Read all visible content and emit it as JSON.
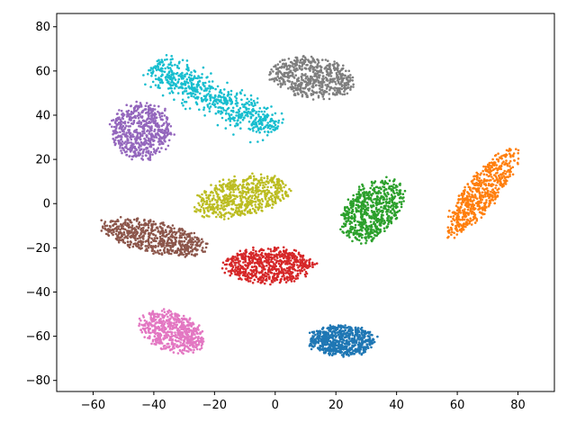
{
  "chart_data": {
    "type": "scatter",
    "title": "",
    "xlabel": "",
    "ylabel": "",
    "xlim": [
      -72,
      92
    ],
    "ylim": [
      -85,
      86
    ],
    "x_ticks": [
      -60,
      -40,
      -20,
      0,
      20,
      40,
      60,
      80
    ],
    "y_ticks": [
      -80,
      -60,
      -40,
      -20,
      0,
      20,
      40,
      60,
      80
    ],
    "x_tick_labels": [
      "−60",
      "−40",
      "−20",
      "0",
      "20",
      "40",
      "60",
      "80"
    ],
    "y_tick_labels": [
      "−80",
      "−60",
      "−40",
      "−20",
      "0",
      "20",
      "40",
      "60",
      "80"
    ],
    "grid": false,
    "legend": "none",
    "series": [
      {
        "color": "#1f77b4",
        "center": [
          22,
          -62
        ],
        "spread": [
          11,
          7
        ],
        "rotation_deg": 0,
        "count": 650,
        "shape": "blob"
      },
      {
        "color": "#ff7f0e",
        "center": [
          68,
          5
        ],
        "spread": [
          6,
          22
        ],
        "rotation_deg": -28,
        "count": 600,
        "shape": "blob"
      },
      {
        "color": "#2ca02c",
        "center": [
          32,
          -3
        ],
        "spread": [
          9,
          15
        ],
        "rotation_deg": -25,
        "count": 650,
        "shape": "blob"
      },
      {
        "color": "#d62728",
        "center": [
          -2,
          -28
        ],
        "spread": [
          15,
          8
        ],
        "rotation_deg": 0,
        "count": 650,
        "shape": "blob"
      },
      {
        "color": "#9467bd",
        "center": [
          -44,
          33
        ],
        "spread": [
          10,
          13
        ],
        "rotation_deg": 0,
        "count": 600,
        "shape": "blob"
      },
      {
        "color": "#8c564b",
        "center": [
          -40,
          -15
        ],
        "spread": [
          18,
          7
        ],
        "rotation_deg": -18,
        "count": 600,
        "shape": "blob"
      },
      {
        "color": "#e377c2",
        "center": [
          -34,
          -58
        ],
        "spread": [
          12,
          8
        ],
        "rotation_deg": -40,
        "count": 600,
        "shape": "blob"
      },
      {
        "color": "#7f7f7f",
        "center": [
          12,
          57
        ],
        "spread": [
          14,
          9
        ],
        "rotation_deg": -15,
        "count": 600,
        "shape": "blob"
      },
      {
        "color": "#bcbd22",
        "center": [
          -11,
          3
        ],
        "spread": [
          16,
          9
        ],
        "rotation_deg": 18,
        "count": 600,
        "shape": "blob"
      },
      {
        "color": "#17becf",
        "center": [
          -20,
          48
        ],
        "spread": [
          20,
          6
        ],
        "rotation_deg": -35,
        "count": 650,
        "shape": "band"
      }
    ]
  }
}
